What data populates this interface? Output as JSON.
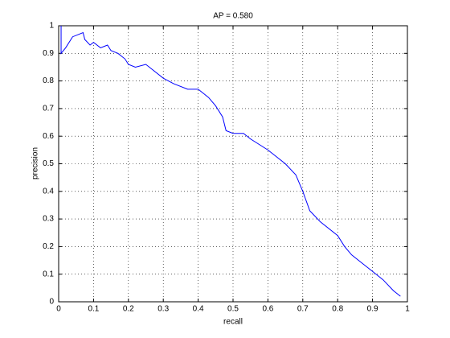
{
  "chart_data": {
    "type": "line",
    "title": "AP = 0.580",
    "x_label": "recall",
    "y_label": "precision",
    "x": [
      0.007,
      0.007,
      0.02,
      0.04,
      0.07,
      0.075,
      0.09,
      0.1,
      0.12,
      0.14,
      0.15,
      0.17,
      0.19,
      0.2,
      0.22,
      0.25,
      0.27,
      0.3,
      0.33,
      0.37,
      0.4,
      0.43,
      0.45,
      0.47,
      0.48,
      0.5,
      0.53,
      0.55,
      0.6,
      0.65,
      0.68,
      0.7,
      0.72,
      0.75,
      0.8,
      0.82,
      0.84,
      0.87,
      0.9,
      0.93,
      0.96,
      0.98
    ],
    "series": [
      {
        "name": "precision",
        "color": "#0000ff",
        "values": [
          1,
          0.9,
          0.92,
          0.96,
          0.975,
          0.95,
          0.93,
          0.94,
          0.92,
          0.93,
          0.91,
          0.9,
          0.88,
          0.86,
          0.85,
          0.86,
          0.84,
          0.81,
          0.79,
          0.77,
          0.77,
          0.74,
          0.71,
          0.67,
          0.62,
          0.61,
          0.61,
          0.59,
          0.55,
          0.5,
          0.46,
          0.4,
          0.33,
          0.29,
          0.24,
          0.2,
          0.17,
          0.14,
          0.11,
          0.08,
          0.04,
          0.02
        ]
      }
    ],
    "xlim": [
      0,
      1
    ],
    "ylim": [
      0,
      1
    ],
    "xticks": [
      0,
      0.1,
      0.2,
      0.3,
      0.4,
      0.5,
      0.6,
      0.7,
      0.8,
      0.9,
      1
    ],
    "yticks": [
      0,
      0.1,
      0.2,
      0.3,
      0.4,
      0.5,
      0.6,
      0.7,
      0.8,
      0.9,
      1
    ],
    "grid": true
  }
}
